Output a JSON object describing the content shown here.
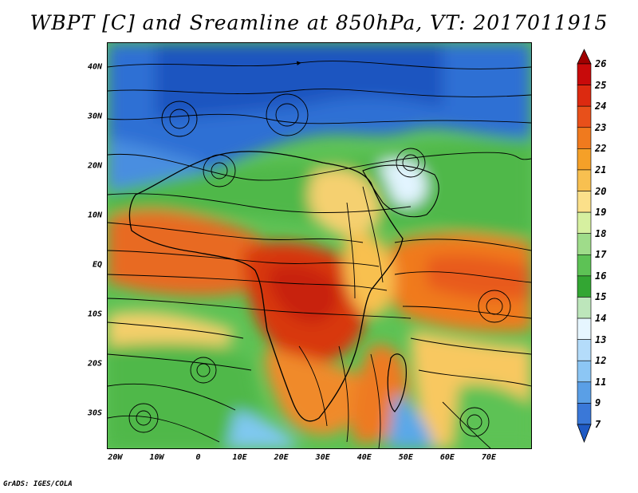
{
  "title": "WBPT [C] and Sreamline at 850hPa, VT: 2017011915",
  "footer": "GrADS: IGES/COLA",
  "map": {
    "lat_range": [
      -37,
      45
    ],
    "lon_range": [
      -22,
      80
    ],
    "lat_labels": [
      {
        "lat": 40,
        "text": "40N"
      },
      {
        "lat": 30,
        "text": "30N"
      },
      {
        "lat": 20,
        "text": "20N"
      },
      {
        "lat": 10,
        "text": "10N"
      },
      {
        "lat": 0,
        "text": "EQ"
      },
      {
        "lat": -10,
        "text": "10S"
      },
      {
        "lat": -20,
        "text": "20S"
      },
      {
        "lat": -30,
        "text": "30S"
      }
    ],
    "lon_labels": [
      {
        "lon": -20,
        "text": "20W"
      },
      {
        "lon": -10,
        "text": "10W"
      },
      {
        "lon": 0,
        "text": "0"
      },
      {
        "lon": 10,
        "text": "10E"
      },
      {
        "lon": 20,
        "text": "20E"
      },
      {
        "lon": 30,
        "text": "30E"
      },
      {
        "lon": 40,
        "text": "40E"
      },
      {
        "lon": 50,
        "text": "50E"
      },
      {
        "lon": 60,
        "text": "60E"
      },
      {
        "lon": 70,
        "text": "70E"
      }
    ]
  },
  "colorbar": {
    "labels": [
      "26",
      "25",
      "24",
      "23",
      "22",
      "21",
      "20",
      "19",
      "18",
      "17",
      "16",
      "15",
      "14",
      "13",
      "12",
      "11",
      "9",
      "7"
    ],
    "colors": [
      "#a00000",
      "#c80a0a",
      "#dc2a10",
      "#e8501a",
      "#f07a1e",
      "#f5a028",
      "#f8c050",
      "#fbe08a",
      "#d6f0a0",
      "#9fdc8a",
      "#5dc255",
      "#33a633",
      "#bde6bb",
      "#e6f6ff",
      "#b4dcfa",
      "#8cc6f4",
      "#5a9fe6",
      "#3a78d8",
      "#1f5ac4"
    ]
  }
}
